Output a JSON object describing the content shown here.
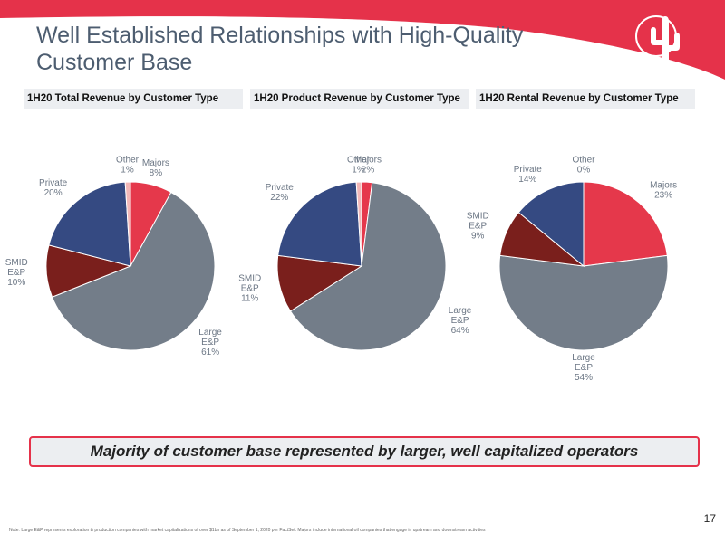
{
  "slide": {
    "title_line1": "Well Established Relationships with High-Quality",
    "title_line2": "Customer Base",
    "callout": "Majority of customer base represented by larger, well capitalized operators",
    "page_number": "17",
    "footnote": "Note: Large E&P represents exploration & production companies with market capitalizations of over $1bn as of September 1, 2020 per FactSet. Majors include international oil companies that engage in upstream and downstream activities"
  },
  "colors": {
    "accent_red": "#e5324a",
    "majors": "#e5384b",
    "large_ep": "#737d89",
    "smid_ep": "#7a1f1c",
    "private": "#354a82",
    "other": "#f2b8b8",
    "title_text": "#4d5d70"
  },
  "logo": {
    "icon": "cactus-sun-icon"
  },
  "chart_data": [
    {
      "type": "pie",
      "title": "1H20 Total Revenue by Customer Type",
      "slices": [
        {
          "name": "Majors",
          "label": [
            "Majors",
            "8%"
          ],
          "value": 8
        },
        {
          "name": "Large E&P",
          "label": [
            "Large",
            "E&P",
            "61%"
          ],
          "value": 61
        },
        {
          "name": "SMID E&P",
          "label": [
            "SMID",
            "E&P",
            "10%"
          ],
          "value": 10
        },
        {
          "name": "Private",
          "label": [
            "Private",
            "20%"
          ],
          "value": 20
        },
        {
          "name": "Other",
          "label": [
            "Other",
            "1%"
          ],
          "value": 1
        }
      ]
    },
    {
      "type": "pie",
      "title": "1H20 Product Revenue by Customer Type",
      "slices": [
        {
          "name": "Majors",
          "label": [
            "Majors",
            "2%"
          ],
          "value": 2
        },
        {
          "name": "Large E&P",
          "label": [
            "Large",
            "E&P",
            "64%"
          ],
          "value": 64
        },
        {
          "name": "SMID E&P",
          "label": [
            "SMID",
            "E&P",
            "11%"
          ],
          "value": 11
        },
        {
          "name": "Private",
          "label": [
            "Private",
            "22%"
          ],
          "value": 22
        },
        {
          "name": "Other",
          "label": [
            "Other",
            "1%"
          ],
          "value": 1
        }
      ]
    },
    {
      "type": "pie",
      "title": "1H20 Rental Revenue by Customer Type",
      "slices": [
        {
          "name": "Majors",
          "label": [
            "Majors",
            "23%"
          ],
          "value": 23
        },
        {
          "name": "Large E&P",
          "label": [
            "Large",
            "E&P",
            "54%"
          ],
          "value": 54
        },
        {
          "name": "SMID E&P",
          "label": [
            "SMID",
            "E&P",
            "9%"
          ],
          "value": 9
        },
        {
          "name": "Private",
          "label": [
            "Private",
            "14%"
          ],
          "value": 14
        },
        {
          "name": "Other",
          "label": [
            "Other",
            "0%"
          ],
          "value": 0
        }
      ]
    }
  ]
}
